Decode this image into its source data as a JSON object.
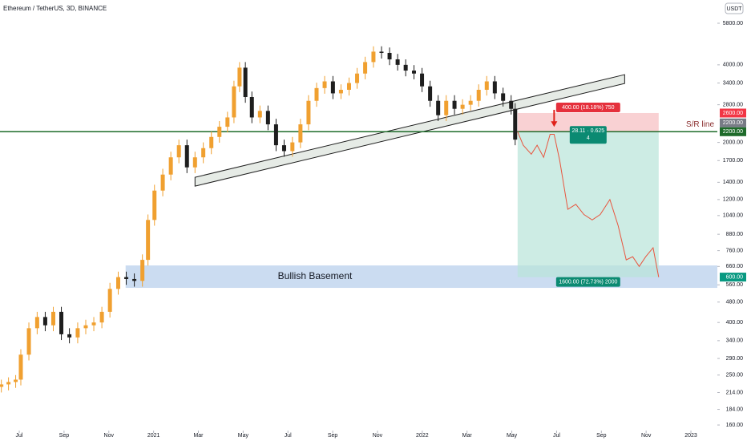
{
  "chart_data": {
    "type": "candlestick",
    "title": "Ethereum / TetherUS, 3D, BINANCE",
    "quote_unit": "USDT",
    "up_color": "#f0a030",
    "down_color": "#1e1e1e",
    "log_scale": true,
    "grid": false,
    "ylim": [
      149,
      7140
    ],
    "yticks": [
      {
        "value": 5800,
        "label": "5800.00"
      },
      {
        "value": 4000,
        "label": "4000.00"
      },
      {
        "value": 3400,
        "label": "3400.00"
      },
      {
        "value": 2800,
        "label": "2800.00"
      },
      {
        "value": 2000,
        "label": "2000.00"
      },
      {
        "value": 1700,
        "label": "1700.00"
      },
      {
        "value": 1400,
        "label": "1400.00"
      },
      {
        "value": 1200,
        "label": "1200.00"
      },
      {
        "value": 1040,
        "label": "1040.00"
      },
      {
        "value": 880,
        "label": "880.00"
      },
      {
        "value": 760,
        "label": "760.00"
      },
      {
        "value": 660,
        "label": "660.00"
      },
      {
        "value": 560,
        "label": "560.00"
      },
      {
        "value": 480,
        "label": "480.00"
      },
      {
        "value": 400,
        "label": "400.00"
      },
      {
        "value": 340,
        "label": "340.00"
      },
      {
        "value": 290,
        "label": "290.00"
      },
      {
        "value": 250,
        "label": "250.00"
      },
      {
        "value": 214,
        "label": "214.00"
      },
      {
        "value": 184,
        "label": "184.00"
      },
      {
        "value": 160,
        "label": "160.00"
      }
    ],
    "xlim": [
      -0.86,
      31.18
    ],
    "xticks": [
      {
        "value": 0,
        "label": "Jul"
      },
      {
        "value": 2,
        "label": "Sep"
      },
      {
        "value": 4,
        "label": "Nov"
      },
      {
        "value": 6,
        "label": "2021"
      },
      {
        "value": 8,
        "label": "Mar"
      },
      {
        "value": 10,
        "label": "May"
      },
      {
        "value": 12,
        "label": "Jul"
      },
      {
        "value": 14,
        "label": "Sep"
      },
      {
        "value": 16,
        "label": "Nov"
      },
      {
        "value": 18,
        "label": "2022"
      },
      {
        "value": 20,
        "label": "Mar"
      },
      {
        "value": 22,
        "label": "May"
      },
      {
        "value": 24,
        "label": "Jul"
      },
      {
        "value": 26,
        "label": "Sep"
      },
      {
        "value": 28,
        "label": "Nov"
      },
      {
        "value": 30,
        "label": "2023"
      }
    ],
    "x": [
      -0.8,
      -0.48,
      -0.16,
      0.07,
      0.43,
      0.8,
      1.16,
      1.52,
      1.88,
      2.24,
      2.61,
      2.97,
      3.33,
      3.69,
      4.05,
      4.42,
      4.78,
      5.14,
      5.5,
      5.75,
      6.04,
      6.41,
      6.77,
      7.13,
      7.49,
      7.85,
      8.22,
      8.58,
      8.94,
      9.3,
      9.59,
      9.84,
      10.1,
      10.39,
      10.75,
      11.11,
      11.47,
      11.83,
      12.2,
      12.56,
      12.92,
      13.28,
      13.64,
      14.01,
      14.37,
      14.73,
      15.09,
      15.45,
      15.82,
      16.18,
      16.54,
      16.9,
      17.26,
      17.63,
      17.99,
      18.35,
      18.71,
      19.07,
      19.44,
      19.8,
      20.16,
      20.52,
      20.88,
      21.24,
      21.61,
      21.97,
      22.15
    ],
    "open": [
      225,
      230,
      235,
      240,
      300,
      380,
      420,
      390,
      440,
      360,
      350,
      380,
      390,
      400,
      440,
      540,
      600,
      590,
      580,
      700,
      1000,
      1300,
      1500,
      1750,
      1950,
      1600,
      1750,
      1900,
      2100,
      2300,
      2500,
      3300,
      3900,
      3000,
      2500,
      2650,
      2350,
      1950,
      1850,
      2000,
      2350,
      2900,
      3250,
      3450,
      3100,
      3200,
      3400,
      3700,
      4100,
      4500,
      4450,
      4200,
      4000,
      3800,
      3700,
      3300,
      2900,
      2550,
      2900,
      2700,
      2800,
      2900,
      3200,
      3450,
      3100,
      2900,
      2700
    ],
    "high": [
      240,
      245,
      250,
      315,
      400,
      440,
      440,
      460,
      460,
      380,
      400,
      410,
      420,
      460,
      570,
      630,
      630,
      620,
      735,
      1050,
      1370,
      1580,
      1840,
      2050,
      2050,
      1840,
      2000,
      2200,
      2420,
      2630,
      3470,
      4100,
      4100,
      3150,
      2780,
      2780,
      2470,
      2050,
      2100,
      2470,
      3050,
      3410,
      3620,
      3620,
      3360,
      3570,
      3890,
      4300,
      4720,
      4720,
      4670,
      4410,
      4200,
      3990,
      3890,
      3470,
      3050,
      3050,
      3050,
      2940,
      3050,
      3360,
      3620,
      3620,
      3260,
      3050,
      2840
    ],
    "low": [
      214,
      218,
      223,
      228,
      285,
      360,
      370,
      370,
      342,
      332,
      332,
      360,
      370,
      380,
      418,
      513,
      560,
      551,
      551,
      665,
      950,
      1235,
      1425,
      1660,
      1520,
      1520,
      1660,
      1800,
      1995,
      2185,
      2375,
      3135,
      2850,
      2375,
      2375,
      2230,
      1850,
      1760,
      1760,
      1900,
      2230,
      2750,
      3090,
      2945,
      2945,
      3040,
      3230,
      3515,
      3900,
      4230,
      3990,
      3800,
      3610,
      3515,
      3135,
      2750,
      2420,
      2420,
      2565,
      2565,
      2660,
      2755,
      3040,
      2945,
      2755,
      2565,
      1950
    ],
    "close": [
      230,
      235,
      240,
      300,
      380,
      420,
      390,
      440,
      360,
      350,
      380,
      390,
      400,
      440,
      540,
      600,
      590,
      580,
      700,
      1000,
      1300,
      1500,
      1750,
      1950,
      1600,
      1750,
      1900,
      2100,
      2300,
      2500,
      3300,
      3900,
      3000,
      2500,
      2650,
      2350,
      1950,
      1850,
      2000,
      2350,
      2900,
      3250,
      3450,
      3100,
      3200,
      3400,
      3700,
      4100,
      4500,
      4450,
      4200,
      4000,
      3800,
      3700,
      3300,
      2900,
      2550,
      2900,
      2700,
      2800,
      2900,
      3200,
      3450,
      3100,
      2900,
      2700,
      2050
    ],
    "trendline": {
      "x": [
        7.85,
        27.04
      ],
      "values": [
        1353,
        3387
      ]
    },
    "sr_line": {
      "label": "S/R line",
      "value": 2200,
      "color": "#1e6b2a"
    },
    "zone": {
      "label": "Bullish Basement",
      "x": [
        4.75
      ],
      "low": 545,
      "high": 666,
      "color": "#a9c4e8"
    },
    "position": {
      "x": [
        22.26,
        28.56
      ],
      "entry": 2200,
      "stop": 2600,
      "target": 600,
      "stop_label": "400.00 (18.18%) 750",
      "info_label": [
        "28.11 · 0.625",
        "4"
      ],
      "target_label": "1600.00 (72.73%) 2000"
    },
    "projection": {
      "x": [
        22.26,
        22.51,
        22.87,
        23.13,
        23.42,
        23.71,
        23.89,
        24.14,
        24.5,
        24.86,
        25.22,
        25.59,
        25.95,
        26.38,
        26.75,
        27.11,
        27.4,
        27.69,
        27.98,
        28.31,
        28.56
      ],
      "values": [
        2200,
        1950,
        1800,
        1950,
        1750,
        2150,
        2150,
        1700,
        1100,
        1150,
        1050,
        1000,
        1050,
        1200,
        950,
        700,
        720,
        660,
        720,
        780,
        600
      ],
      "color": "#e8553e"
    },
    "price_labels": [
      {
        "value": 2600,
        "label": "2600.00",
        "color": "#f23645"
      },
      {
        "value": 2200,
        "label": "2200.00",
        "color": "#787b86"
      },
      {
        "value": 2200,
        "label": "2200.00",
        "color": "#1e6b2a"
      },
      {
        "value": 600,
        "label": "600.00",
        "color": "#089981"
      }
    ]
  }
}
